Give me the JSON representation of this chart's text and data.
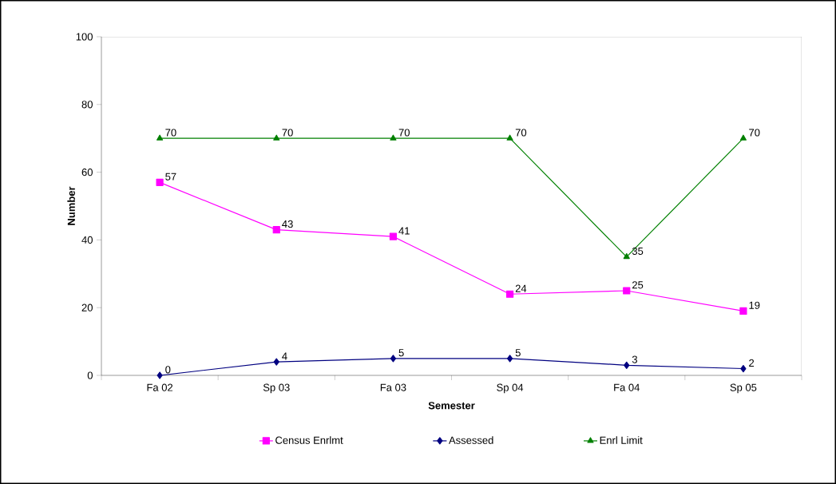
{
  "chart_data": {
    "type": "line",
    "xlabel": "Semester",
    "ylabel": "Number",
    "categories": [
      "Fa 02",
      "Sp 03",
      "Fa 03",
      "Sp 04",
      "Fa 04",
      "Sp 05"
    ],
    "series": [
      {
        "name": "Census Enrlmt",
        "color": "#ff00ff",
        "marker": "square",
        "values": [
          57,
          43,
          41,
          24,
          25,
          19
        ]
      },
      {
        "name": "Assessed",
        "color": "#000080",
        "marker": "diamond",
        "values": [
          0,
          4,
          5,
          5,
          3,
          2
        ]
      },
      {
        "name": "Enrl Limit",
        "color": "#008000",
        "marker": "triangle",
        "values": [
          70,
          70,
          70,
          70,
          35,
          70
        ]
      }
    ],
    "ylim": [
      0,
      100
    ],
    "yticks": [
      0,
      20,
      40,
      60,
      80,
      100
    ],
    "grid": false,
    "legend": "bottom",
    "data_labels": true
  }
}
